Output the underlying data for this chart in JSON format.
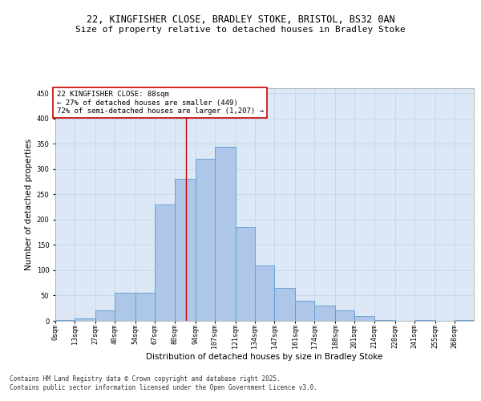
{
  "title_line1": "22, KINGFISHER CLOSE, BRADLEY STOKE, BRISTOL, BS32 0AN",
  "title_line2": "Size of property relative to detached houses in Bradley Stoke",
  "xlabel": "Distribution of detached houses by size in Bradley Stoke",
  "ylabel": "Number of detached properties",
  "bins": [
    0,
    13,
    27,
    40,
    54,
    67,
    80,
    94,
    107,
    121,
    134,
    147,
    161,
    174,
    188,
    201,
    214,
    228,
    241,
    255,
    268,
    281
  ],
  "bin_labels": [
    "0sqm",
    "13sqm",
    "27sqm",
    "40sqm",
    "54sqm",
    "67sqm",
    "80sqm",
    "94sqm",
    "107sqm",
    "121sqm",
    "134sqm",
    "147sqm",
    "161sqm",
    "174sqm",
    "188sqm",
    "201sqm",
    "214sqm",
    "228sqm",
    "241sqm",
    "255sqm",
    "268sqm"
  ],
  "heights": [
    2,
    5,
    20,
    55,
    55,
    230,
    280,
    320,
    345,
    185,
    110,
    65,
    40,
    30,
    20,
    10,
    2,
    0,
    2,
    0,
    2
  ],
  "bar_color": "#aec6e8",
  "bar_edge_color": "#5b9bd5",
  "grid_color": "#c8d8ea",
  "background_color": "#dce8f5",
  "property_line_x": 88,
  "property_line_color": "#cc0000",
  "annotation_box_text": "22 KINGFISHER CLOSE: 88sqm\n← 27% of detached houses are smaller (449)\n72% of semi-detached houses are larger (1,207) →",
  "annotation_box_color": "#cc0000",
  "annotation_box_fill": "#ffffff",
  "ylim": [
    0,
    460
  ],
  "yticks": [
    0,
    50,
    100,
    150,
    200,
    250,
    300,
    350,
    400,
    450
  ],
  "footer_text": "Contains HM Land Registry data © Crown copyright and database right 2025.\nContains public sector information licensed under the Open Government Licence v3.0.",
  "title_fontsize": 8.5,
  "subtitle_fontsize": 8,
  "axis_label_fontsize": 7.5,
  "tick_fontsize": 6,
  "annotation_fontsize": 6.5,
  "footer_fontsize": 5.5
}
